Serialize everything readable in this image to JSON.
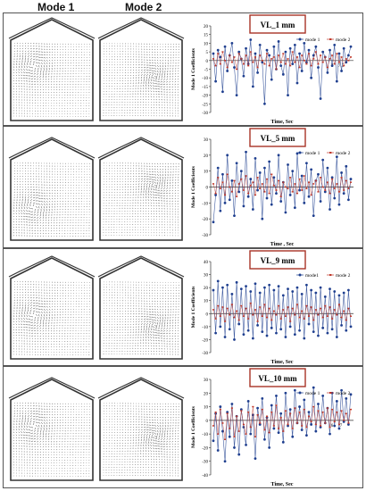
{
  "headers": {
    "mode1": "Mode 1",
    "mode2": "Mode 2"
  },
  "colors": {
    "mode1": "#1f3f8f",
    "mode2": "#c0392b",
    "title_border": "#a93226"
  },
  "chart_data": [
    {
      "type": "line",
      "title": "VL_1 mm",
      "ylabel": "Mode 1 Coefficients",
      "xlabel": "Time, Sec",
      "ylim": [
        -30,
        20
      ],
      "yticks": [
        20,
        15,
        10,
        5,
        0,
        -5,
        -10,
        -15,
        -20,
        -25,
        -30
      ],
      "xticks": [
        "7",
        "7.5"
      ],
      "legend": "top-right",
      "series": [
        {
          "name": "mode 1",
          "values": [
            4,
            -12,
            6,
            2,
            -18,
            8,
            -6,
            3,
            10,
            -4,
            -20,
            5,
            1,
            -9,
            7,
            -2,
            12,
            -15,
            4,
            -7,
            9,
            -1,
            -25,
            6,
            3,
            -11,
            8,
            -5,
            11,
            -3,
            -8,
            5,
            -20,
            7,
            -2,
            9,
            -13,
            4,
            -6,
            10,
            -1,
            6,
            -10,
            3,
            8,
            -4,
            -22,
            5,
            2,
            -7,
            6,
            -3,
            9,
            -12,
            4,
            -6,
            7,
            -1,
            3,
            8
          ]
        },
        {
          "name": "mode 2",
          "values": [
            1,
            -3,
            4,
            -2,
            5,
            0,
            -4,
            3,
            -1,
            2,
            -5,
            4,
            1,
            -2,
            3,
            -3,
            5,
            -1,
            2,
            -4,
            3,
            0,
            -2,
            4,
            -3,
            1,
            2,
            -5,
            3,
            -1,
            4,
            -2,
            1,
            -3,
            5,
            -1,
            2,
            -4,
            3,
            0,
            -2,
            4,
            -3,
            1,
            5,
            -2,
            3,
            -1,
            2,
            -4,
            1,
            3,
            -2,
            4,
            -1,
            2,
            -3,
            1,
            0,
            2
          ]
        }
      ]
    },
    {
      "type": "line",
      "title": "VL_5 mm",
      "ylabel": "Mode 1 Coefficients",
      "xlabel": "Time , Sec",
      "ylim": [
        -30,
        30
      ],
      "yticks": [
        30,
        20,
        10,
        0,
        -10,
        -20,
        -30
      ],
      "xticks": [],
      "legend": "top-right",
      "series": [
        {
          "name": "mode 1",
          "values": [
            -22,
            -5,
            12,
            -15,
            8,
            -10,
            20,
            -8,
            4,
            -18,
            15,
            -3,
            10,
            -12,
            22,
            -6,
            5,
            -14,
            18,
            -2,
            9,
            -20,
            12,
            -7,
            16,
            -11,
            6,
            -4,
            20,
            -9,
            3,
            -16,
            14,
            -5,
            10,
            -13,
            21,
            -2,
            7,
            -10,
            15,
            -6,
            11,
            -18,
            4,
            8,
            -9,
            17,
            -3,
            12,
            -14,
            6,
            -7,
            19,
            -11,
            9,
            -4,
            13,
            -8,
            5
          ]
        },
        {
          "name": "mode 2",
          "values": [
            2,
            -4,
            6,
            -1,
            3,
            -5,
            8,
            0,
            -3,
            4,
            -6,
            2,
            5,
            -2,
            7,
            -4,
            1,
            3,
            -5,
            6,
            -1,
            2,
            -3,
            5,
            -4,
            8,
            1,
            -2,
            4,
            -6,
            3,
            0,
            -1,
            6,
            -3,
            2,
            -4,
            5,
            -2,
            7,
            -1,
            3,
            -5,
            2,
            4,
            -3,
            6,
            0,
            -2,
            3,
            -4,
            5,
            -1,
            2,
            -3,
            6,
            -2,
            4,
            -1,
            3
          ]
        }
      ]
    },
    {
      "type": "line",
      "title": "VL_9 mm",
      "ylabel": "Mode 1 Coefficients",
      "xlabel": "Time, Sec",
      "ylim": [
        -30,
        40
      ],
      "yticks": [
        40,
        30,
        20,
        10,
        0,
        -10,
        -20,
        -30
      ],
      "xticks": [
        "7"
      ],
      "legend": "top-right",
      "series": [
        {
          "name": "mode1",
          "values": [
            18,
            -15,
            25,
            -10,
            20,
            -18,
            22,
            -12,
            15,
            -20,
            24,
            -8,
            19,
            -16,
            21,
            -13,
            17,
            -19,
            23,
            -9,
            16,
            -14,
            20,
            -17,
            22,
            -11,
            18,
            -15,
            21,
            -12,
            14,
            -18,
            19,
            -10,
            17,
            -16,
            20,
            -13,
            15,
            -19,
            22,
            -8,
            18,
            -14,
            16,
            -17,
            20,
            -11,
            13,
            -15,
            19,
            -12,
            17,
            -18,
            14,
            -9,
            16,
            -13,
            18,
            -10
          ]
        },
        {
          "name": "mode 2",
          "values": [
            3,
            -4,
            6,
            -2,
            5,
            -6,
            4,
            -1,
            7,
            -3,
            2,
            -5,
            6,
            -2,
            4,
            -4,
            8,
            -1,
            3,
            -6,
            5,
            -2,
            7,
            -3,
            4,
            -5,
            2,
            -1,
            6,
            -4,
            3,
            -2,
            5,
            -6,
            4,
            -1,
            7,
            -3,
            2,
            -4,
            6,
            -2,
            5,
            -5,
            3,
            -1,
            4,
            -3,
            6,
            -2,
            5,
            -4,
            3,
            -1,
            7,
            -3,
            2,
            -5,
            4,
            -2
          ]
        }
      ]
    },
    {
      "type": "line",
      "title": "VL_10 mm",
      "ylabel": "Mode 1 Coefficients",
      "xlabel": "Time, Sec",
      "ylim": [
        -40,
        30
      ],
      "yticks": [
        30,
        20,
        10,
        0,
        -10,
        -20,
        -30,
        -40
      ],
      "xticks": [
        "6",
        "7"
      ],
      "legend": "top-right",
      "series": [
        {
          "name": "mode 1",
          "values": [
            -15,
            5,
            -22,
            10,
            -8,
            -30,
            6,
            -12,
            12,
            -20,
            3,
            -25,
            8,
            -5,
            -18,
            14,
            -10,
            4,
            -28,
            9,
            -3,
            16,
            -14,
            2,
            -20,
            11,
            -6,
            18,
            -9,
            5,
            -16,
            20,
            -4,
            8,
            -12,
            22,
            -2,
            10,
            -7,
            15,
            -11,
            6,
            -3,
            24,
            -8,
            12,
            -5,
            18,
            -2,
            9,
            -10,
            20,
            -4,
            14,
            -6,
            22,
            -1,
            16,
            -3,
            19
          ]
        },
        {
          "name": "mode 2",
          "values": [
            -4,
            6,
            -10,
            8,
            -2,
            -14,
            5,
            -6,
            9,
            -12,
            3,
            -8,
            7,
            -3,
            -10,
            6,
            -5,
            10,
            -12,
            4,
            -2,
            8,
            -7,
            3,
            -9,
            6,
            -4,
            11,
            -6,
            2,
            -8,
            7,
            -3,
            5,
            -6,
            9,
            -2,
            6,
            -4,
            8,
            -5,
            3,
            -1,
            10,
            -3,
            7,
            -4,
            6,
            -2,
            9,
            -5,
            8,
            -1,
            6,
            -3,
            7,
            0,
            5,
            -2,
            8
          ]
        }
      ]
    }
  ]
}
